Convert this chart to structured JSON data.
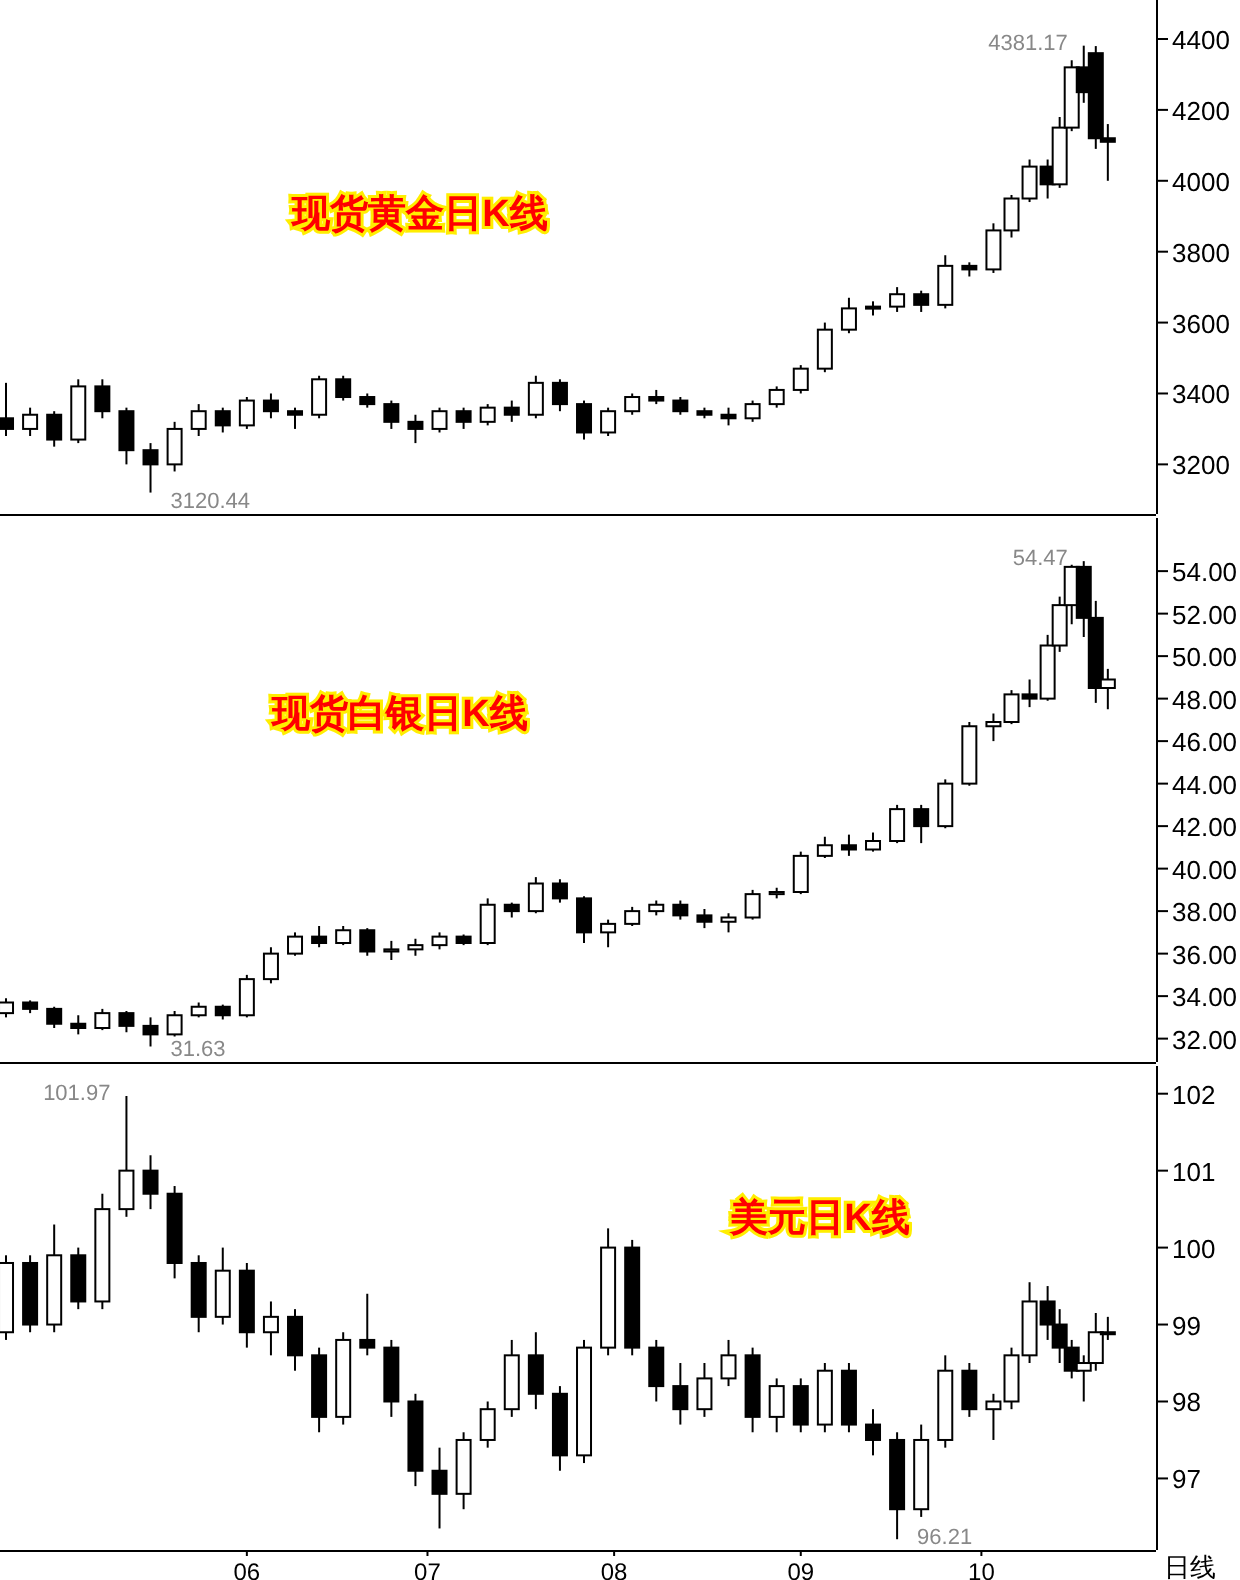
{
  "chart_data": [
    {
      "type": "candlestick",
      "title": "现货黄金日K线",
      "color": "#000000",
      "xlim": [
        "--04-21",
        "--10-30"
      ],
      "tick_labels": "y",
      "ylim": [
        3060,
        4510
      ],
      "yticks": [
        3200,
        3400,
        3600,
        3800,
        4000,
        4200,
        4400
      ],
      "x": [
        "--04-22",
        "--04-26",
        "--04-30",
        "--05-04",
        "--05-08",
        "--05-12",
        "--05-16",
        "--05-20",
        "--05-24",
        "--05-28",
        "--06-01",
        "--06-05",
        "--06-09",
        "--06-13",
        "--06-17",
        "--06-21",
        "--06-25",
        "--06-29",
        "--07-03",
        "--07-07",
        "--07-11",
        "--07-15",
        "--07-19",
        "--07-23",
        "--07-27",
        "--07-31",
        "--08-04",
        "--08-08",
        "--08-12",
        "--08-16",
        "--08-20",
        "--08-24",
        "--08-28",
        "--09-01",
        "--09-05",
        "--09-09",
        "--09-13",
        "--09-17",
        "--09-21",
        "--09-25",
        "--09-29",
        "--10-03",
        "--10-06",
        "--10-09",
        "--10-12",
        "--10-14",
        "--10-16",
        "--10-18",
        "--10-20",
        "--10-22"
      ],
      "ohlc": [
        [
          3330,
          3430,
          3280,
          3300
        ],
        [
          3300,
          3360,
          3280,
          3340
        ],
        [
          3340,
          3350,
          3250,
          3270
        ],
        [
          3270,
          3440,
          3260,
          3420
        ],
        [
          3420,
          3440,
          3330,
          3350
        ],
        [
          3350,
          3360,
          3200,
          3240
        ],
        [
          3240,
          3260,
          3120.44,
          3200
        ],
        [
          3200,
          3320,
          3180,
          3300
        ],
        [
          3300,
          3370,
          3280,
          3350
        ],
        [
          3350,
          3360,
          3290,
          3310
        ],
        [
          3310,
          3390,
          3300,
          3380
        ],
        [
          3380,
          3400,
          3330,
          3350
        ],
        [
          3350,
          3360,
          3300,
          3340
        ],
        [
          3340,
          3450,
          3330,
          3440
        ],
        [
          3440,
          3450,
          3380,
          3390
        ],
        [
          3390,
          3400,
          3360,
          3370
        ],
        [
          3370,
          3380,
          3300,
          3320
        ],
        [
          3320,
          3340,
          3260,
          3300
        ],
        [
          3300,
          3360,
          3290,
          3350
        ],
        [
          3350,
          3360,
          3300,
          3320
        ],
        [
          3320,
          3370,
          3310,
          3360
        ],
        [
          3360,
          3380,
          3320,
          3340
        ],
        [
          3340,
          3450,
          3330,
          3430
        ],
        [
          3430,
          3440,
          3350,
          3370
        ],
        [
          3370,
          3380,
          3270,
          3290
        ],
        [
          3290,
          3360,
          3280,
          3350
        ],
        [
          3350,
          3400,
          3340,
          3390
        ],
        [
          3390,
          3410,
          3370,
          3380
        ],
        [
          3380,
          3390,
          3340,
          3350
        ],
        [
          3350,
          3360,
          3330,
          3340
        ],
        [
          3340,
          3360,
          3310,
          3330
        ],
        [
          3330,
          3380,
          3320,
          3370
        ],
        [
          3370,
          3420,
          3360,
          3410
        ],
        [
          3410,
          3480,
          3400,
          3470
        ],
        [
          3470,
          3600,
          3460,
          3580
        ],
        [
          3580,
          3670,
          3570,
          3640
        ],
        [
          3640,
          3660,
          3620,
          3645
        ],
        [
          3645,
          3700,
          3630,
          3680
        ],
        [
          3680,
          3690,
          3630,
          3650
        ],
        [
          3650,
          3790,
          3640,
          3760
        ],
        [
          3760,
          3770,
          3730,
          3750
        ],
        [
          3750,
          3880,
          3740,
          3860
        ],
        [
          3860,
          3960,
          3840,
          3950
        ],
        [
          3950,
          4060,
          3940,
          4040
        ],
        [
          4040,
          4060,
          3950,
          3990
        ],
        [
          3990,
          4180,
          3980,
          4150
        ],
        [
          4150,
          4340,
          4140,
          4320
        ],
        [
          4320,
          4381.17,
          4220,
          4250
        ],
        [
          4360,
          4380,
          4090,
          4120
        ],
        [
          4120,
          4160,
          4000,
          4110
        ]
      ],
      "annotations": [
        {
          "text": "4381.17",
          "x": "--10-18",
          "y": 4381.17
        },
        {
          "text": "3120.44",
          "x": "--05-16",
          "y": 3120.44
        }
      ]
    },
    {
      "type": "candlestick",
      "title": "现货白银日K线",
      "color": "#000000",
      "xlim": [
        "--04-21",
        "--10-30"
      ],
      "tick_labels": "y",
      "ylim": [
        30.9,
        56.5
      ],
      "yticks": [
        {
          "value": 32,
          "label": "32.00"
        },
        {
          "value": 34,
          "label": "34.00"
        },
        {
          "value": 36,
          "label": "36.00"
        },
        {
          "value": 38,
          "label": "38.00"
        },
        {
          "value": 40,
          "label": "40.00"
        },
        {
          "value": 42,
          "label": "42.00"
        },
        {
          "value": 44,
          "label": "44.00"
        },
        {
          "value": 46,
          "label": "46.00"
        },
        {
          "value": 48,
          "label": "48.00"
        },
        {
          "value": 50,
          "label": "50.00"
        },
        {
          "value": 52,
          "label": "52.00"
        },
        {
          "value": 54,
          "label": "54.00"
        }
      ],
      "x": [
        "--04-22",
        "--04-26",
        "--04-30",
        "--05-04",
        "--05-08",
        "--05-12",
        "--05-16",
        "--05-20",
        "--05-24",
        "--05-28",
        "--06-01",
        "--06-05",
        "--06-09",
        "--06-13",
        "--06-17",
        "--06-21",
        "--06-25",
        "--06-29",
        "--07-03",
        "--07-07",
        "--07-11",
        "--07-15",
        "--07-19",
        "--07-23",
        "--07-27",
        "--07-31",
        "--08-04",
        "--08-08",
        "--08-12",
        "--08-16",
        "--08-20",
        "--08-24",
        "--08-28",
        "--09-01",
        "--09-05",
        "--09-09",
        "--09-13",
        "--09-17",
        "--09-21",
        "--09-25",
        "--09-29",
        "--10-03",
        "--10-06",
        "--10-09",
        "--10-12",
        "--10-14",
        "--10-16",
        "--10-18",
        "--10-20",
        "--10-22"
      ],
      "ohlc": [
        [
          33.2,
          33.9,
          33.0,
          33.7
        ],
        [
          33.7,
          33.8,
          33.2,
          33.4
        ],
        [
          33.4,
          33.5,
          32.5,
          32.7
        ],
        [
          32.7,
          33.1,
          32.2,
          32.5
        ],
        [
          32.5,
          33.4,
          32.4,
          33.2
        ],
        [
          33.2,
          33.3,
          32.3,
          32.6
        ],
        [
          32.6,
          33.0,
          31.63,
          32.2
        ],
        [
          32.2,
          33.3,
          32.1,
          33.1
        ],
        [
          33.1,
          33.7,
          33.0,
          33.5
        ],
        [
          33.5,
          33.6,
          32.9,
          33.1
        ],
        [
          33.1,
          35.0,
          33.0,
          34.8
        ],
        [
          34.8,
          36.3,
          34.6,
          36.0
        ],
        [
          36.0,
          37.0,
          35.9,
          36.8
        ],
        [
          36.8,
          37.3,
          36.3,
          36.5
        ],
        [
          36.5,
          37.3,
          36.4,
          37.1
        ],
        [
          37.1,
          37.2,
          35.9,
          36.1
        ],
        [
          36.1,
          36.6,
          35.7,
          36.2
        ],
        [
          36.2,
          36.7,
          35.9,
          36.4
        ],
        [
          36.4,
          37.0,
          36.2,
          36.8
        ],
        [
          36.8,
          36.9,
          36.4,
          36.5
        ],
        [
          36.5,
          38.6,
          36.4,
          38.3
        ],
        [
          38.3,
          38.4,
          37.7,
          38.0
        ],
        [
          38.0,
          39.6,
          37.9,
          39.3
        ],
        [
          39.3,
          39.5,
          38.4,
          38.6
        ],
        [
          38.6,
          38.7,
          36.5,
          37.0
        ],
        [
          37.0,
          37.6,
          36.3,
          37.4
        ],
        [
          37.4,
          38.2,
          37.3,
          38.0
        ],
        [
          38.0,
          38.5,
          37.8,
          38.3
        ],
        [
          38.3,
          38.5,
          37.6,
          37.8
        ],
        [
          37.8,
          38.1,
          37.2,
          37.5
        ],
        [
          37.5,
          37.9,
          37.0,
          37.7
        ],
        [
          37.7,
          39.0,
          37.6,
          38.8
        ],
        [
          38.8,
          39.1,
          38.6,
          38.9
        ],
        [
          38.9,
          40.8,
          38.8,
          40.6
        ],
        [
          40.6,
          41.5,
          40.5,
          41.1
        ],
        [
          41.1,
          41.6,
          40.6,
          40.9
        ],
        [
          40.9,
          41.7,
          40.8,
          41.3
        ],
        [
          41.3,
          43.0,
          41.2,
          42.8
        ],
        [
          42.8,
          43.0,
          41.2,
          42.0
        ],
        [
          42.0,
          44.2,
          41.9,
          44.0
        ],
        [
          44.0,
          46.9,
          43.9,
          46.7
        ],
        [
          46.7,
          47.3,
          46.0,
          46.9
        ],
        [
          46.9,
          48.4,
          46.8,
          48.2
        ],
        [
          48.2,
          48.9,
          47.6,
          48.0
        ],
        [
          48.0,
          51.0,
          47.9,
          50.5
        ],
        [
          50.5,
          52.8,
          50.2,
          52.4
        ],
        [
          52.4,
          54.3,
          51.5,
          54.2
        ],
        [
          54.2,
          54.47,
          50.9,
          51.8
        ],
        [
          51.8,
          52.6,
          47.8,
          48.5
        ],
        [
          48.5,
          49.4,
          47.5,
          48.9
        ]
      ],
      "annotations": [
        {
          "text": "54.47",
          "x": "--10-18",
          "y": 54.47
        },
        {
          "text": "31.63",
          "x": "--05-16",
          "y": 31.63
        }
      ]
    },
    {
      "type": "candlestick",
      "title": "美元日K线",
      "color": "#000000",
      "xlim": [
        "--04-21",
        "--10-30"
      ],
      "xticks": [
        {
          "value": "--06-01",
          "label": "06"
        },
        {
          "value": "--07-01",
          "label": "07"
        },
        {
          "value": "--08-01",
          "label": "08"
        },
        {
          "value": "--09-01",
          "label": "09"
        },
        {
          "value": "--10-01",
          "label": "10"
        }
      ],
      "ylim": [
        96.07,
        102.36
      ],
      "yticks": [
        97,
        98,
        99,
        100,
        101,
        102
      ],
      "x": [
        "--04-22",
        "--04-26",
        "--04-30",
        "--05-04",
        "--05-08",
        "--05-12",
        "--05-16",
        "--05-20",
        "--05-24",
        "--05-28",
        "--06-01",
        "--06-05",
        "--06-09",
        "--06-13",
        "--06-17",
        "--06-21",
        "--06-25",
        "--06-29",
        "--07-03",
        "--07-07",
        "--07-11",
        "--07-15",
        "--07-19",
        "--07-23",
        "--07-27",
        "--07-31",
        "--08-04",
        "--08-08",
        "--08-12",
        "--08-16",
        "--08-20",
        "--08-24",
        "--08-28",
        "--09-01",
        "--09-05",
        "--09-09",
        "--09-13",
        "--09-17",
        "--09-21",
        "--09-25",
        "--09-29",
        "--10-03",
        "--10-06",
        "--10-09",
        "--10-12",
        "--10-14",
        "--10-16",
        "--10-18",
        "--10-20",
        "--10-22"
      ],
      "ohlc": [
        [
          98.9,
          99.9,
          98.8,
          99.8
        ],
        [
          99.8,
          99.9,
          98.9,
          99.0
        ],
        [
          99.0,
          100.3,
          98.9,
          99.9
        ],
        [
          99.9,
          100.0,
          99.2,
          99.3
        ],
        [
          99.3,
          100.7,
          99.2,
          100.5
        ],
        [
          100.5,
          101.97,
          100.4,
          101.0
        ],
        [
          101.0,
          101.2,
          100.5,
          100.7
        ],
        [
          100.7,
          100.8,
          99.6,
          99.8
        ],
        [
          99.8,
          99.9,
          98.9,
          99.1
        ],
        [
          99.1,
          100.0,
          99.0,
          99.7
        ],
        [
          99.7,
          99.8,
          98.7,
          98.9
        ],
        [
          98.9,
          99.3,
          98.6,
          99.1
        ],
        [
          99.1,
          99.2,
          98.4,
          98.6
        ],
        [
          98.6,
          98.7,
          97.6,
          97.8
        ],
        [
          97.8,
          98.9,
          97.7,
          98.8
        ],
        [
          98.8,
          99.4,
          98.6,
          98.7
        ],
        [
          98.7,
          98.8,
          97.8,
          98.0
        ],
        [
          98.0,
          98.1,
          96.9,
          97.1
        ],
        [
          97.1,
          97.4,
          96.35,
          96.8
        ],
        [
          96.8,
          97.6,
          96.6,
          97.5
        ],
        [
          97.5,
          98.0,
          97.4,
          97.9
        ],
        [
          97.9,
          98.8,
          97.8,
          98.6
        ],
        [
          98.6,
          98.9,
          97.9,
          98.1
        ],
        [
          98.1,
          98.2,
          97.1,
          97.3
        ],
        [
          97.3,
          98.8,
          97.2,
          98.7
        ],
        [
          98.7,
          100.25,
          98.6,
          100.0
        ],
        [
          100.0,
          100.1,
          98.6,
          98.7
        ],
        [
          98.7,
          98.8,
          98.0,
          98.2
        ],
        [
          98.2,
          98.5,
          97.7,
          97.9
        ],
        [
          97.9,
          98.5,
          97.8,
          98.3
        ],
        [
          98.3,
          98.8,
          98.2,
          98.6
        ],
        [
          98.6,
          98.7,
          97.6,
          97.8
        ],
        [
          97.8,
          98.3,
          97.6,
          98.2
        ],
        [
          98.2,
          98.3,
          97.6,
          97.7
        ],
        [
          97.7,
          98.5,
          97.6,
          98.4
        ],
        [
          98.4,
          98.5,
          97.6,
          97.7
        ],
        [
          97.7,
          97.9,
          97.3,
          97.5
        ],
        [
          97.5,
          97.6,
          96.21,
          96.6
        ],
        [
          96.6,
          97.7,
          96.5,
          97.5
        ],
        [
          97.5,
          98.6,
          97.4,
          98.4
        ],
        [
          98.4,
          98.5,
          97.8,
          97.9
        ],
        [
          97.9,
          98.1,
          97.5,
          98.0
        ],
        [
          98.0,
          98.7,
          97.9,
          98.6
        ],
        [
          98.6,
          99.55,
          98.5,
          99.3
        ],
        [
          99.3,
          99.5,
          98.8,
          99.0
        ],
        [
          99.0,
          99.2,
          98.5,
          98.7
        ],
        [
          98.7,
          98.8,
          98.3,
          98.4
        ],
        [
          98.4,
          98.6,
          98.0,
          98.5
        ],
        [
          98.5,
          99.15,
          98.4,
          98.9
        ],
        [
          98.9,
          99.1,
          98.8,
          98.9
        ]
      ],
      "annotations": [
        {
          "text": "101.97",
          "x": "--05-12",
          "y": 101.97
        },
        {
          "text": "96.21",
          "x": "--09-17",
          "y": 96.21
        },
        "日线"
      ]
    }
  ]
}
